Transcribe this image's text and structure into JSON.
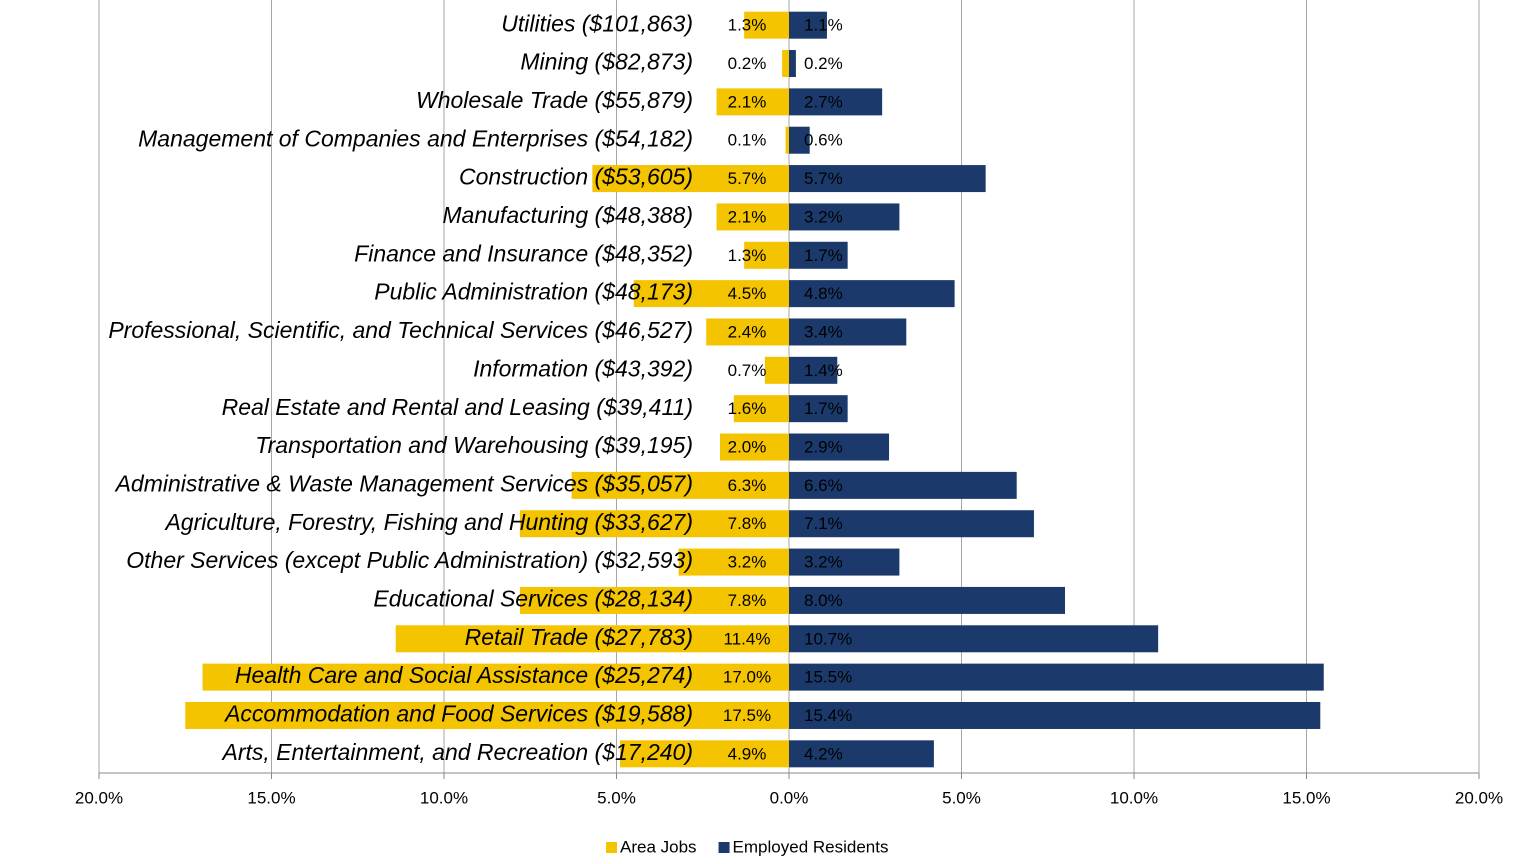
{
  "chart_data": {
    "type": "diverging-bar",
    "categories": [
      "Utilities ($101,863)",
      "Mining ($82,873)",
      "Wholesale Trade ($55,879)",
      "Management of Companies and Enterprises ($54,182)",
      "Construction ($53,605)",
      "Manufacturing ($48,388)",
      "Finance and Insurance ($48,352)",
      "Public Administration ($48,173)",
      "Professional, Scientific, and Technical Services ($46,527)",
      "Information ($43,392)",
      "Real Estate and Rental and Leasing ($39,411)",
      "Transportation and Warehousing ($39,195)",
      "Administrative & Waste Management Services ($35,057)",
      "Agriculture, Forestry, Fishing and Hunting ($33,627)",
      "Other Services (except Public Administration) ($32,593)",
      "Educational Services ($28,134)",
      "Retail Trade ($27,783)",
      "Health Care and Social Assistance ($25,274)",
      "Accommodation and Food Services ($19,588)",
      "Arts, Entertainment, and Recreation ($17,240)"
    ],
    "series": [
      {
        "name": "Area Jobs",
        "color": "#f5c400",
        "values": [
          -1.3,
          -0.2,
          -2.1,
          -0.1,
          -5.7,
          -2.1,
          -1.3,
          -4.5,
          -2.4,
          -0.7,
          -1.6,
          -2.0,
          -6.3,
          -7.8,
          -3.2,
          -7.8,
          -11.4,
          -17.0,
          -17.5,
          -4.9
        ],
        "value_labels": [
          "1.3%",
          "0.2%",
          "2.1%",
          "0.1%",
          "5.7%",
          "2.1%",
          "1.3%",
          "4.5%",
          "2.4%",
          "0.7%",
          "1.6%",
          "2.0%",
          "6.3%",
          "7.8%",
          "3.2%",
          "7.8%",
          "11.4%",
          "17.0%",
          "17.5%",
          "4.9%"
        ]
      },
      {
        "name": "Employed Residents",
        "color": "#1b3a6b",
        "values": [
          1.1,
          0.2,
          2.7,
          0.6,
          5.7,
          3.2,
          1.7,
          4.8,
          3.4,
          1.4,
          1.7,
          2.9,
          6.6,
          7.1,
          3.2,
          8.0,
          10.7,
          15.5,
          15.4,
          4.2
        ],
        "value_labels": [
          "1.1%",
          "0.2%",
          "2.7%",
          "0.6%",
          "5.7%",
          "3.2%",
          "1.7%",
          "4.8%",
          "3.4%",
          "1.4%",
          "1.7%",
          "2.9%",
          "6.6%",
          "7.1%",
          "3.2%",
          "8.0%",
          "10.7%",
          "15.5%",
          "15.4%",
          "4.2%"
        ]
      }
    ],
    "xlim": [
      -20,
      20
    ],
    "xticks": [
      {
        "value": -20,
        "label": "20.0%"
      },
      {
        "value": -15,
        "label": "15.0%"
      },
      {
        "value": -10,
        "label": "10.0%"
      },
      {
        "value": -5,
        "label": "5.0%"
      },
      {
        "value": 0,
        "label": "0.0%"
      },
      {
        "value": 5,
        "label": "5.0%"
      },
      {
        "value": 10,
        "label": "10.0%"
      },
      {
        "value": 15,
        "label": "15.0%"
      },
      {
        "value": 20,
        "label": "20.0%"
      }
    ],
    "grid": true,
    "legend": "bottom"
  }
}
